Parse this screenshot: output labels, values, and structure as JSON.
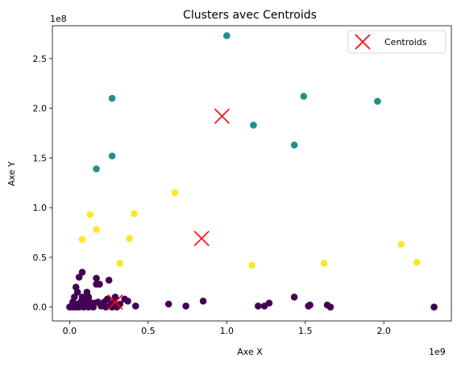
{
  "chart_data": {
    "type": "scatter",
    "title": "Clusters avec Centroids",
    "xlabel": "Axe X",
    "ylabel": "Axe Y",
    "x_scale_label": "1e9",
    "y_scale_label": "1e8",
    "xlim": [
      -0.11,
      2.43
    ],
    "ylim": [
      -0.14,
      2.83
    ],
    "x_ticks": [
      "0.0",
      "0.5",
      "1.0",
      "1.5",
      "2.0"
    ],
    "y_ticks": [
      "0.0",
      "0.5",
      "1.0",
      "1.5",
      "2.0",
      "2.5"
    ],
    "grid": false,
    "legend_position": "top-right",
    "series": [
      {
        "color": "#440154",
        "points": [
          [
            0.0,
            0.0
          ],
          [
            0.01,
            0.01
          ],
          [
            0.02,
            0.0
          ],
          [
            0.02,
            0.05
          ],
          [
            0.03,
            0.02
          ],
          [
            0.03,
            0.1
          ],
          [
            0.04,
            0.2
          ],
          [
            0.04,
            0.0
          ],
          [
            0.05,
            0.03
          ],
          [
            0.05,
            0.15
          ],
          [
            0.06,
            0.3
          ],
          [
            0.06,
            0.0
          ],
          [
            0.07,
            0.05
          ],
          [
            0.07,
            0.01
          ],
          [
            0.08,
            0.35
          ],
          [
            0.08,
            0.1
          ],
          [
            0.09,
            0.0
          ],
          [
            0.1,
            0.05
          ],
          [
            0.1,
            0.02
          ],
          [
            0.11,
            0.15
          ],
          [
            0.12,
            0.1
          ],
          [
            0.12,
            0.0
          ],
          [
            0.13,
            0.05
          ],
          [
            0.14,
            0.02
          ],
          [
            0.15,
            0.0
          ],
          [
            0.16,
            0.04
          ],
          [
            0.17,
            0.23
          ],
          [
            0.17,
            0.29
          ],
          [
            0.18,
            0.05
          ],
          [
            0.19,
            0.23
          ],
          [
            0.2,
            0.01
          ],
          [
            0.22,
            0.05
          ],
          [
            0.23,
            0.0
          ],
          [
            0.24,
            0.08
          ],
          [
            0.25,
            0.27
          ],
          [
            0.26,
            0.02
          ],
          [
            0.27,
            0.0
          ],
          [
            0.28,
            0.05
          ],
          [
            0.29,
            0.1
          ],
          [
            0.3,
            0.0
          ],
          [
            0.32,
            0.03
          ],
          [
            0.35,
            0.08
          ],
          [
            0.37,
            0.06
          ],
          [
            0.42,
            0.01
          ],
          [
            0.63,
            0.03
          ],
          [
            0.74,
            0.01
          ],
          [
            0.85,
            0.06
          ],
          [
            1.2,
            0.01
          ],
          [
            1.24,
            0.01
          ],
          [
            1.27,
            0.04
          ],
          [
            1.43,
            0.1
          ],
          [
            1.52,
            0.01
          ],
          [
            1.53,
            0.02
          ],
          [
            1.64,
            0.02
          ],
          [
            1.66,
            0.0
          ],
          [
            2.32,
            0.0
          ]
        ]
      },
      {
        "color": "#21918c",
        "points": [
          [
            0.17,
            1.39
          ],
          [
            0.27,
            2.1
          ],
          [
            0.27,
            1.52
          ],
          [
            1.0,
            2.73
          ],
          [
            1.17,
            1.83
          ],
          [
            1.43,
            1.63
          ],
          [
            1.49,
            2.12
          ],
          [
            1.96,
            2.07
          ]
        ]
      },
      {
        "color": "#fde725",
        "points": [
          [
            0.08,
            0.68
          ],
          [
            0.13,
            0.93
          ],
          [
            0.17,
            0.78
          ],
          [
            0.32,
            0.44
          ],
          [
            0.38,
            0.69
          ],
          [
            0.41,
            0.94
          ],
          [
            0.67,
            1.15
          ],
          [
            1.16,
            0.42
          ],
          [
            1.62,
            0.44
          ],
          [
            2.11,
            0.63
          ],
          [
            2.21,
            0.45
          ]
        ]
      },
      {
        "name": "Centroids",
        "color": "#ff0000",
        "marker": "x",
        "points": [
          [
            0.97,
            1.92
          ],
          [
            0.84,
            0.69
          ],
          [
            0.29,
            0.05
          ]
        ]
      }
    ]
  }
}
